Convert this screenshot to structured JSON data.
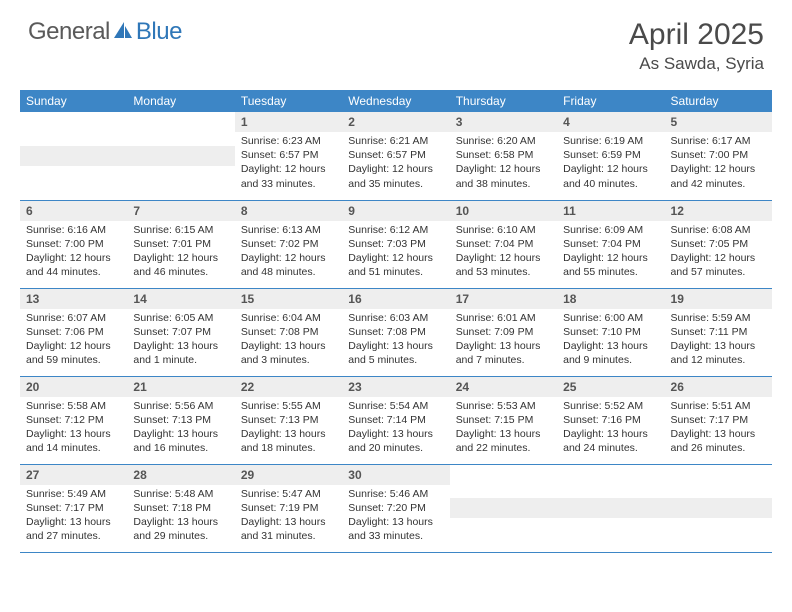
{
  "brand": {
    "part1": "General",
    "part2": "Blue"
  },
  "colors": {
    "header_bg": "#3d86c6",
    "header_text": "#ffffff",
    "daynum_bg": "#eeeeee",
    "border": "#3d86c6",
    "text": "#333333",
    "title": "#4a4a4a",
    "logo_gray": "#5a5a5a",
    "logo_blue": "#2f77b8"
  },
  "title": "April 2025",
  "location": "As Sawda, Syria",
  "weekdays": [
    "Sunday",
    "Monday",
    "Tuesday",
    "Wednesday",
    "Thursday",
    "Friday",
    "Saturday"
  ],
  "layout": {
    "first_weekday_index": 2,
    "days_in_month": 30
  },
  "days": {
    "1": {
      "sunrise": "6:23 AM",
      "sunset": "6:57 PM",
      "daylight": "12 hours and 33 minutes."
    },
    "2": {
      "sunrise": "6:21 AM",
      "sunset": "6:57 PM",
      "daylight": "12 hours and 35 minutes."
    },
    "3": {
      "sunrise": "6:20 AM",
      "sunset": "6:58 PM",
      "daylight": "12 hours and 38 minutes."
    },
    "4": {
      "sunrise": "6:19 AM",
      "sunset": "6:59 PM",
      "daylight": "12 hours and 40 minutes."
    },
    "5": {
      "sunrise": "6:17 AM",
      "sunset": "7:00 PM",
      "daylight": "12 hours and 42 minutes."
    },
    "6": {
      "sunrise": "6:16 AM",
      "sunset": "7:00 PM",
      "daylight": "12 hours and 44 minutes."
    },
    "7": {
      "sunrise": "6:15 AM",
      "sunset": "7:01 PM",
      "daylight": "12 hours and 46 minutes."
    },
    "8": {
      "sunrise": "6:13 AM",
      "sunset": "7:02 PM",
      "daylight": "12 hours and 48 minutes."
    },
    "9": {
      "sunrise": "6:12 AM",
      "sunset": "7:03 PM",
      "daylight": "12 hours and 51 minutes."
    },
    "10": {
      "sunrise": "6:10 AM",
      "sunset": "7:04 PM",
      "daylight": "12 hours and 53 minutes."
    },
    "11": {
      "sunrise": "6:09 AM",
      "sunset": "7:04 PM",
      "daylight": "12 hours and 55 minutes."
    },
    "12": {
      "sunrise": "6:08 AM",
      "sunset": "7:05 PM",
      "daylight": "12 hours and 57 minutes."
    },
    "13": {
      "sunrise": "6:07 AM",
      "sunset": "7:06 PM",
      "daylight": "12 hours and 59 minutes."
    },
    "14": {
      "sunrise": "6:05 AM",
      "sunset": "7:07 PM",
      "daylight": "13 hours and 1 minute."
    },
    "15": {
      "sunrise": "6:04 AM",
      "sunset": "7:08 PM",
      "daylight": "13 hours and 3 minutes."
    },
    "16": {
      "sunrise": "6:03 AM",
      "sunset": "7:08 PM",
      "daylight": "13 hours and 5 minutes."
    },
    "17": {
      "sunrise": "6:01 AM",
      "sunset": "7:09 PM",
      "daylight": "13 hours and 7 minutes."
    },
    "18": {
      "sunrise": "6:00 AM",
      "sunset": "7:10 PM",
      "daylight": "13 hours and 9 minutes."
    },
    "19": {
      "sunrise": "5:59 AM",
      "sunset": "7:11 PM",
      "daylight": "13 hours and 12 minutes."
    },
    "20": {
      "sunrise": "5:58 AM",
      "sunset": "7:12 PM",
      "daylight": "13 hours and 14 minutes."
    },
    "21": {
      "sunrise": "5:56 AM",
      "sunset": "7:13 PM",
      "daylight": "13 hours and 16 minutes."
    },
    "22": {
      "sunrise": "5:55 AM",
      "sunset": "7:13 PM",
      "daylight": "13 hours and 18 minutes."
    },
    "23": {
      "sunrise": "5:54 AM",
      "sunset": "7:14 PM",
      "daylight": "13 hours and 20 minutes."
    },
    "24": {
      "sunrise": "5:53 AM",
      "sunset": "7:15 PM",
      "daylight": "13 hours and 22 minutes."
    },
    "25": {
      "sunrise": "5:52 AM",
      "sunset": "7:16 PM",
      "daylight": "13 hours and 24 minutes."
    },
    "26": {
      "sunrise": "5:51 AM",
      "sunset": "7:17 PM",
      "daylight": "13 hours and 26 minutes."
    },
    "27": {
      "sunrise": "5:49 AM",
      "sunset": "7:17 PM",
      "daylight": "13 hours and 27 minutes."
    },
    "28": {
      "sunrise": "5:48 AM",
      "sunset": "7:18 PM",
      "daylight": "13 hours and 29 minutes."
    },
    "29": {
      "sunrise": "5:47 AM",
      "sunset": "7:19 PM",
      "daylight": "13 hours and 31 minutes."
    },
    "30": {
      "sunrise": "5:46 AM",
      "sunset": "7:20 PM",
      "daylight": "13 hours and 33 minutes."
    }
  },
  "labels": {
    "sunrise": "Sunrise:",
    "sunset": "Sunset:",
    "daylight": "Daylight:"
  }
}
